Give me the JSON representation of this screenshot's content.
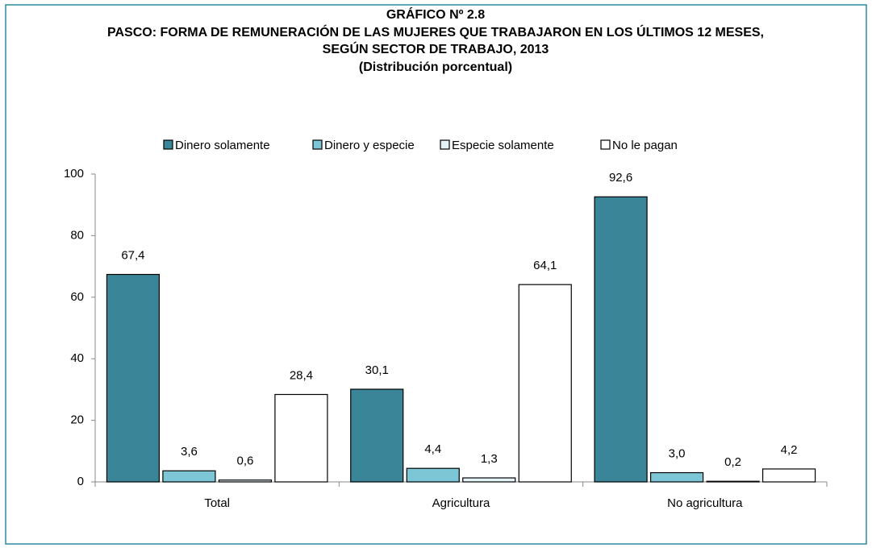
{
  "chart_data": {
    "type": "bar",
    "title": "GRÁFICO Nº 2.8",
    "subtitle": [
      "PASCO: FORMA DE REMUNERACIÓN DE LAS MUJERES QUE TRABAJARON EN LOS ÚLTIMOS 12 MESES,",
      "SEGÚN SECTOR DE TRABAJO, 2013",
      "(Distribución porcentual)"
    ],
    "categories": [
      "Total",
      "Agricultura",
      "No agricultura"
    ],
    "series": [
      {
        "name": "Dinero solamente",
        "color": "#3a8597",
        "values": [
          67.4,
          30.1,
          92.6
        ],
        "value_labels": [
          "67,4",
          "30,1",
          "92,6"
        ]
      },
      {
        "name": "Dinero y especie",
        "color": "#7cc6d6",
        "values": [
          3.6,
          4.4,
          3.0
        ],
        "value_labels": [
          "3,6",
          "4,4",
          "3,0"
        ]
      },
      {
        "name": "Especie solamente",
        "color": "#e4f3f8",
        "values": [
          0.6,
          1.3,
          0.2
        ],
        "value_labels": [
          "0,6",
          "1,3",
          "0,2"
        ]
      },
      {
        "name": "No le pagan",
        "color": "#ffffff",
        "values": [
          28.4,
          64.1,
          4.2
        ],
        "value_labels": [
          "28,4",
          "64,1",
          "4,2"
        ]
      }
    ],
    "ylim": [
      0,
      100
    ],
    "yticks": [
      0,
      20,
      40,
      60,
      80,
      100
    ],
    "grid": false,
    "legend": "top"
  }
}
